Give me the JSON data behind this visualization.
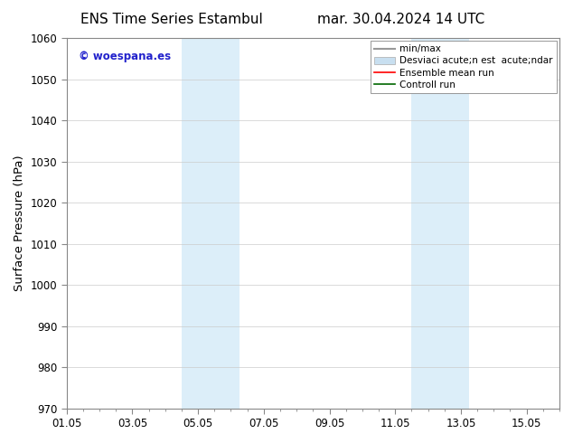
{
  "title_left": "ENS Time Series Estambul",
  "title_right": "mar. 30.04.2024 14 UTC",
  "ylabel": "Surface Pressure (hPa)",
  "ylim": [
    970,
    1060
  ],
  "yticks": [
    970,
    980,
    990,
    1000,
    1010,
    1020,
    1030,
    1040,
    1050,
    1060
  ],
  "xtick_labels": [
    "01.05",
    "03.05",
    "05.05",
    "07.05",
    "09.05",
    "11.05",
    "13.05",
    "15.05"
  ],
  "xtick_positions": [
    0,
    2,
    4,
    6,
    8,
    10,
    12,
    14
  ],
  "xlim": [
    0,
    15
  ],
  "shaded_regions": [
    {
      "xmin": 3.5,
      "xmax": 5.25
    },
    {
      "xmin": 10.5,
      "xmax": 12.25
    }
  ],
  "shaded_color": "#dceef9",
  "watermark_text": "© woespana.es",
  "watermark_color": "#2222cc",
  "bg_color": "#ffffff",
  "plot_bg_color": "#ffffff",
  "grid_color": "#cccccc",
  "tick_fontsize": 8.5,
  "label_fontsize": 9.5,
  "title_fontsize": 11,
  "legend_label1": "min/max",
  "legend_label2": "Desviaci acute;n est  acute;ndar",
  "legend_label3": "Ensemble mean run",
  "legend_label4": "Controll run",
  "legend_color1": "#999999",
  "legend_color2": "#c8dff0",
  "legend_color3": "#ff0000",
  "legend_color4": "#006600"
}
